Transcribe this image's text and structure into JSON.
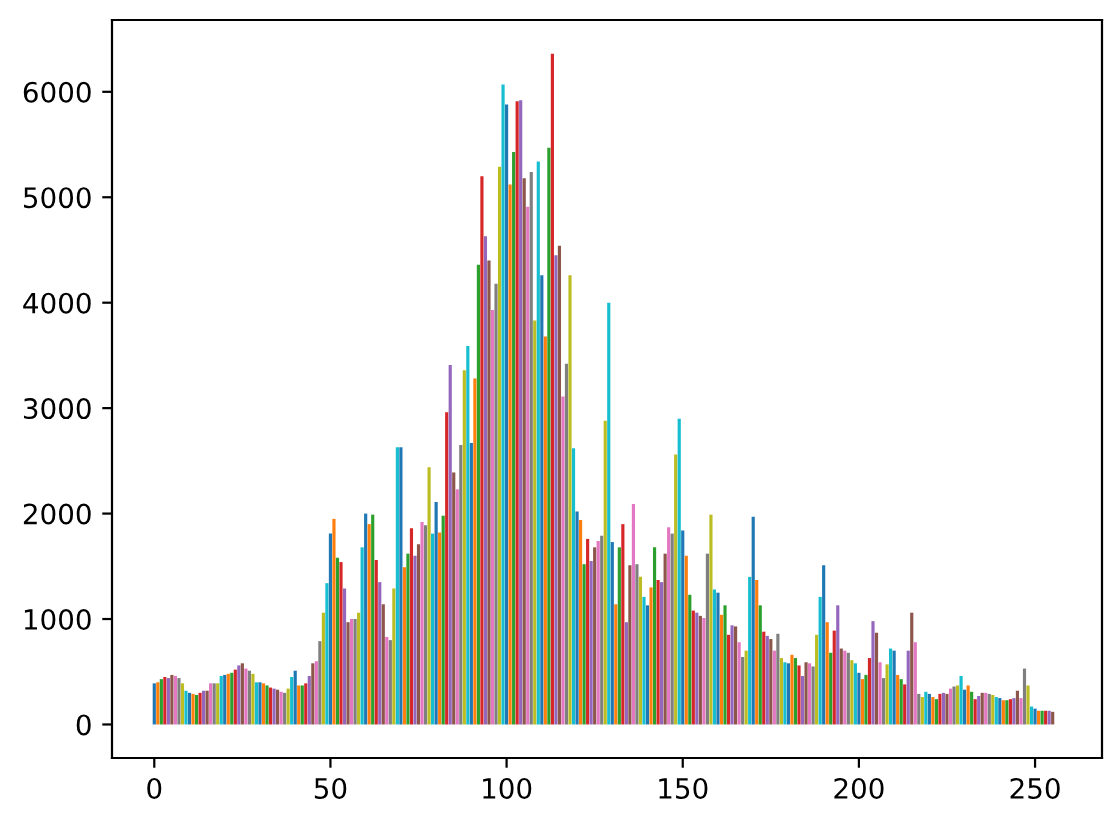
{
  "chart_data": {
    "type": "bar",
    "x": [
      0,
      1,
      2,
      3,
      4,
      5,
      6,
      7,
      8,
      9,
      10,
      11,
      12,
      13,
      14,
      15,
      16,
      17,
      18,
      19,
      20,
      21,
      22,
      23,
      24,
      25,
      26,
      27,
      28,
      29,
      30,
      31,
      32,
      33,
      34,
      35,
      36,
      37,
      38,
      39,
      40,
      41,
      42,
      43,
      44,
      45,
      46,
      47,
      48,
      49,
      50,
      51,
      52,
      53,
      54,
      55,
      56,
      57,
      58,
      59,
      60,
      61,
      62,
      63,
      64,
      65,
      66,
      67,
      68,
      69,
      70,
      71,
      72,
      73,
      74,
      75,
      76,
      77,
      78,
      79,
      80,
      81,
      82,
      83,
      84,
      85,
      86,
      87,
      88,
      89,
      90,
      91,
      92,
      93,
      94,
      95,
      96,
      97,
      98,
      99,
      100,
      101,
      102,
      103,
      104,
      105,
      106,
      107,
      108,
      109,
      110,
      111,
      112,
      113,
      114,
      115,
      116,
      117,
      118,
      119,
      120,
      121,
      122,
      123,
      124,
      125,
      126,
      127,
      128,
      129,
      130,
      131,
      132,
      133,
      134,
      135,
      136,
      137,
      138,
      139,
      140,
      141,
      142,
      143,
      144,
      145,
      146,
      147,
      148,
      149,
      150,
      151,
      152,
      153,
      154,
      155,
      156,
      157,
      158,
      159,
      160,
      161,
      162,
      163,
      164,
      165,
      166,
      167,
      168,
      169,
      170,
      171,
      172,
      173,
      174,
      175,
      176,
      177,
      178,
      179,
      180,
      181,
      182,
      183,
      184,
      185,
      186,
      187,
      188,
      189,
      190,
      191,
      192,
      193,
      194,
      195,
      196,
      197,
      198,
      199,
      200,
      201,
      202,
      203,
      204,
      205,
      206,
      207,
      208,
      209,
      210,
      211,
      212,
      213,
      214,
      215,
      216,
      217,
      218,
      219,
      220,
      221,
      222,
      223,
      224,
      225,
      226,
      227,
      228,
      229,
      230,
      231,
      232,
      233,
      234,
      235,
      236,
      237,
      238,
      239,
      240,
      241,
      242,
      243,
      244,
      245,
      246,
      247,
      248,
      249,
      250,
      251,
      252,
      253,
      254,
      255
    ],
    "values": [
      390,
      400,
      430,
      450,
      440,
      470,
      460,
      440,
      390,
      320,
      300,
      290,
      280,
      300,
      320,
      320,
      390,
      390,
      390,
      460,
      470,
      480,
      490,
      520,
      560,
      580,
      530,
      510,
      480,
      400,
      400,
      390,
      370,
      350,
      340,
      330,
      310,
      300,
      340,
      450,
      510,
      370,
      370,
      390,
      460,
      580,
      600,
      790,
      1060,
      1340,
      1810,
      1950,
      1580,
      1540,
      1290,
      970,
      1000,
      1000,
      1060,
      1680,
      2000,
      1900,
      1990,
      1560,
      1350,
      1140,
      830,
      800,
      1290,
      2630,
      2630,
      1490,
      1620,
      1860,
      1600,
      1710,
      1920,
      1890,
      2440,
      1810,
      2110,
      1820,
      1980,
      2960,
      3410,
      2390,
      2230,
      2650,
      3360,
      3590,
      2670,
      3280,
      4360,
      5200,
      4630,
      4400,
      3930,
      4180,
      5290,
      6070,
      5880,
      5120,
      5430,
      5910,
      5920,
      5180,
      4910,
      5240,
      3830,
      5340,
      4260,
      3680,
      5470,
      6360,
      4450,
      4540,
      3110,
      3420,
      4260,
      2620,
      2020,
      1940,
      1520,
      1760,
      1550,
      1680,
      1740,
      1790,
      2880,
      4000,
      1730,
      1140,
      1680,
      1900,
      970,
      1510,
      2090,
      1520,
      1400,
      1210,
      1130,
      1300,
      1680,
      1370,
      1350,
      1620,
      1870,
      1810,
      2560,
      2900,
      1840,
      1600,
      1230,
      1080,
      1060,
      1030,
      1010,
      1620,
      1990,
      1280,
      1250,
      1040,
      1130,
      850,
      940,
      930,
      780,
      640,
      700,
      1400,
      1970,
      1370,
      1130,
      880,
      840,
      810,
      700,
      860,
      630,
      590,
      580,
      660,
      630,
      560,
      460,
      590,
      580,
      550,
      850,
      1210,
      1510,
      970,
      680,
      890,
      1130,
      720,
      700,
      680,
      610,
      580,
      490,
      430,
      470,
      630,
      980,
      870,
      590,
      440,
      570,
      720,
      700,
      470,
      430,
      380,
      700,
      1060,
      780,
      290,
      260,
      310,
      290,
      260,
      240,
      290,
      300,
      290,
      340,
      360,
      370,
      460,
      330,
      370,
      310,
      240,
      270,
      300,
      300,
      290,
      280,
      260,
      250,
      230,
      230,
      240,
      250,
      320,
      250,
      530,
      370,
      170,
      150,
      130,
      130,
      130,
      130,
      120
    ],
    "colors": [
      "#1f77b4",
      "#ff7f0e",
      "#2ca02c",
      "#d62728",
      "#9467bd",
      "#8c564b",
      "#e377c2",
      "#7f7f7f",
      "#bcbd22",
      "#17becf",
      "#1f77b4",
      "#ff7f0e",
      "#2ca02c",
      "#d62728",
      "#9467bd",
      "#8c564b",
      "#e377c2",
      "#7f7f7f",
      "#bcbd22",
      "#17becf",
      "#1f77b4",
      "#ff7f0e",
      "#2ca02c",
      "#d62728",
      "#9467bd",
      "#8c564b",
      "#e377c2",
      "#7f7f7f",
      "#bcbd22",
      "#17becf",
      "#1f77b4",
      "#ff7f0e",
      "#2ca02c",
      "#d62728",
      "#9467bd",
      "#8c564b",
      "#e377c2",
      "#7f7f7f",
      "#bcbd22",
      "#17becf",
      "#1f77b4",
      "#ff7f0e",
      "#2ca02c",
      "#d62728",
      "#9467bd",
      "#8c564b",
      "#e377c2",
      "#7f7f7f",
      "#bcbd22",
      "#17becf",
      "#1f77b4",
      "#ff7f0e",
      "#2ca02c",
      "#d62728",
      "#9467bd",
      "#8c564b",
      "#e377c2",
      "#7f7f7f",
      "#bcbd22",
      "#17becf",
      "#1f77b4",
      "#ff7f0e",
      "#2ca02c",
      "#d62728",
      "#9467bd",
      "#8c564b",
      "#e377c2",
      "#7f7f7f",
      "#bcbd22",
      "#17becf",
      "#1f77b4",
      "#ff7f0e",
      "#2ca02c",
      "#d62728",
      "#9467bd",
      "#8c564b",
      "#e377c2",
      "#7f7f7f",
      "#bcbd22",
      "#17becf",
      "#1f77b4",
      "#ff7f0e",
      "#2ca02c",
      "#d62728",
      "#9467bd",
      "#8c564b",
      "#e377c2",
      "#7f7f7f",
      "#bcbd22",
      "#17becf",
      "#1f77b4",
      "#ff7f0e",
      "#2ca02c",
      "#d62728",
      "#9467bd",
      "#8c564b",
      "#e377c2",
      "#7f7f7f",
      "#bcbd22",
      "#17becf",
      "#1f77b4",
      "#ff7f0e",
      "#2ca02c",
      "#d62728",
      "#9467bd",
      "#8c564b",
      "#e377c2",
      "#7f7f7f",
      "#bcbd22",
      "#17becf",
      "#1f77b4",
      "#ff7f0e",
      "#2ca02c",
      "#d62728",
      "#9467bd",
      "#8c564b",
      "#e377c2",
      "#7f7f7f",
      "#bcbd22",
      "#17becf",
      "#1f77b4",
      "#ff7f0e",
      "#2ca02c",
      "#d62728",
      "#9467bd",
      "#8c564b",
      "#e377c2",
      "#7f7f7f",
      "#bcbd22",
      "#17becf",
      "#1f77b4",
      "#ff7f0e",
      "#2ca02c",
      "#d62728",
      "#9467bd",
      "#8c564b",
      "#e377c2",
      "#7f7f7f",
      "#bcbd22",
      "#17becf",
      "#1f77b4",
      "#ff7f0e",
      "#2ca02c",
      "#d62728",
      "#9467bd",
      "#8c564b",
      "#e377c2",
      "#7f7f7f",
      "#bcbd22",
      "#17becf",
      "#1f77b4",
      "#ff7f0e",
      "#2ca02c",
      "#d62728",
      "#9467bd",
      "#8c564b",
      "#e377c2",
      "#7f7f7f",
      "#bcbd22",
      "#17becf",
      "#1f77b4",
      "#ff7f0e",
      "#2ca02c",
      "#d62728",
      "#9467bd",
      "#8c564b",
      "#e377c2",
      "#7f7f7f",
      "#bcbd22",
      "#17becf",
      "#1f77b4",
      "#ff7f0e",
      "#2ca02c",
      "#d62728",
      "#9467bd",
      "#8c564b",
      "#e377c2",
      "#7f7f7f",
      "#bcbd22",
      "#17becf",
      "#1f77b4",
      "#ff7f0e",
      "#2ca02c",
      "#d62728",
      "#9467bd",
      "#8c564b",
      "#e377c2",
      "#7f7f7f",
      "#bcbd22",
      "#17becf",
      "#1f77b4",
      "#ff7f0e",
      "#2ca02c",
      "#d62728",
      "#9467bd",
      "#8c564b",
      "#e377c2",
      "#7f7f7f",
      "#bcbd22",
      "#17becf",
      "#1f77b4",
      "#ff7f0e",
      "#2ca02c",
      "#d62728",
      "#9467bd",
      "#8c564b",
      "#e377c2",
      "#7f7f7f",
      "#bcbd22",
      "#17becf",
      "#1f77b4",
      "#ff7f0e",
      "#2ca02c",
      "#d62728",
      "#9467bd",
      "#8c564b",
      "#e377c2",
      "#7f7f7f",
      "#bcbd22",
      "#17becf",
      "#1f77b4",
      "#ff7f0e",
      "#2ca02c",
      "#d62728",
      "#9467bd",
      "#8c564b",
      "#e377c2",
      "#7f7f7f",
      "#bcbd22",
      "#17becf",
      "#1f77b4",
      "#ff7f0e",
      "#2ca02c",
      "#d62728",
      "#9467bd",
      "#8c564b",
      "#e377c2",
      "#7f7f7f",
      "#bcbd22",
      "#17becf",
      "#1f77b4",
      "#ff7f0e",
      "#2ca02c",
      "#d62728",
      "#9467bd",
      "#8c564b",
      "#e377c2",
      "#7f7f7f",
      "#bcbd22",
      "#17becf",
      "#1f77b4",
      "#ff7f0e",
      "#2ca02c",
      "#d62728",
      "#9467bd",
      "#8c564b"
    ],
    "xlim": [
      -12,
      269
    ],
    "ylim": [
      -318,
      6681
    ],
    "xticks": [
      0,
      50,
      100,
      150,
      200,
      250
    ],
    "yticks": [
      0,
      1000,
      2000,
      3000,
      4000,
      5000,
      6000
    ],
    "grid": false,
    "legend": false
  }
}
